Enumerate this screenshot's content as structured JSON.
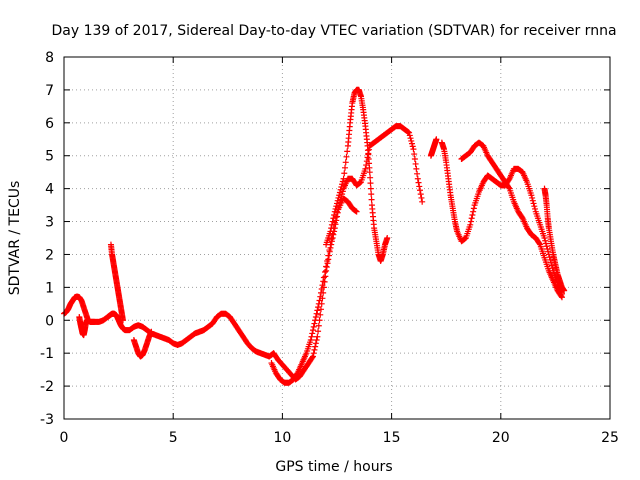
{
  "chart_data": {
    "type": "scatter",
    "title": "Day 139 of 2017, Sidereal Day-to-day VTEC variation (SDTVAR) for receiver rnna",
    "xlabel": "GPS time / hours",
    "ylabel": "SDTVAR / TECUs",
    "xlim": [
      0,
      25
    ],
    "ylim": [
      -3,
      8
    ],
    "xticks": [
      0,
      5,
      10,
      15,
      20,
      25
    ],
    "yticks": [
      -3,
      -2,
      -1,
      0,
      1,
      2,
      3,
      4,
      5,
      6,
      7,
      8
    ],
    "xtick_labels": [
      "0",
      "5",
      "10",
      "15",
      "20",
      "25"
    ],
    "ytick_labels": [
      "-3",
      "-2",
      "-1",
      "0",
      "1",
      "2",
      "3",
      "4",
      "5",
      "6",
      "7",
      "8"
    ],
    "grid": true,
    "marker": "+",
    "color": "#ff0000",
    "series": [
      {
        "name": "main",
        "x": [
          0.0,
          0.1,
          0.2,
          0.3,
          0.4,
          0.5,
          0.6,
          0.7,
          0.8,
          0.9,
          1.0,
          1.1,
          1.2,
          1.3,
          1.4,
          1.6,
          1.8,
          2.0,
          2.1,
          2.2,
          2.3,
          2.4,
          2.5,
          2.6,
          2.7,
          2.8,
          3.0,
          3.2,
          3.4,
          3.6,
          3.8,
          4.0,
          4.2,
          4.4,
          4.6,
          4.8,
          5.0,
          5.2,
          5.4,
          5.6,
          5.8,
          6.0,
          6.2,
          6.4,
          6.6,
          6.8,
          7.0,
          7.2,
          7.4,
          7.6,
          7.8,
          8.0,
          8.2,
          8.4,
          8.6,
          8.8,
          9.0,
          9.2,
          9.4,
          9.6,
          9.8,
          10.0,
          10.2,
          10.4,
          10.6,
          10.8,
          11.0,
          11.2,
          11.4,
          11.6,
          11.8,
          12.0,
          12.2,
          12.4,
          12.6,
          12.8,
          13.0,
          13.2,
          13.4,
          13.6,
          13.8,
          14.0,
          14.2,
          14.4,
          14.6,
          14.8,
          15.0,
          15.2,
          15.4,
          15.6,
          15.8,
          16.0,
          16.2,
          16.4
        ],
        "y": [
          0.2,
          0.25,
          0.35,
          0.5,
          0.6,
          0.7,
          0.72,
          0.7,
          0.6,
          0.4,
          0.2,
          0.0,
          -0.05,
          -0.05,
          -0.05,
          -0.05,
          0.0,
          0.1,
          0.15,
          0.2,
          0.2,
          0.15,
          0.0,
          -0.15,
          -0.25,
          -0.3,
          -0.3,
          -0.2,
          -0.15,
          -0.2,
          -0.3,
          -0.4,
          -0.45,
          -0.5,
          -0.55,
          -0.6,
          -0.7,
          -0.75,
          -0.7,
          -0.6,
          -0.5,
          -0.4,
          -0.35,
          -0.3,
          -0.2,
          -0.1,
          0.1,
          0.2,
          0.2,
          0.1,
          -0.1,
          -0.3,
          -0.5,
          -0.7,
          -0.85,
          -0.95,
          -1.0,
          -1.05,
          -1.1,
          -1.0,
          -1.2,
          -1.35,
          -1.5,
          -1.65,
          -1.8,
          -1.7,
          -1.5,
          -1.3,
          -1.1,
          -0.5,
          0.5,
          1.5,
          2.2,
          2.8,
          3.5,
          4.0,
          4.3,
          4.3,
          4.1,
          4.2,
          4.6,
          5.3,
          5.4,
          5.5,
          5.6,
          5.7,
          5.8,
          5.9,
          5.9,
          5.8,
          5.7,
          5.2,
          4.3,
          3.6
        ]
      },
      {
        "name": "branch-high",
        "x": [
          12.0,
          12.2,
          12.4,
          12.6,
          12.8,
          13.0,
          13.1,
          13.2,
          13.3,
          13.4,
          13.5,
          13.6,
          13.7,
          13.8,
          13.9,
          14.0,
          14.1,
          14.2,
          14.3,
          14.4,
          14.5,
          14.6,
          14.7,
          14.8
        ],
        "y": [
          2.3,
          2.7,
          3.3,
          3.8,
          4.3,
          5.3,
          6.0,
          6.6,
          6.9,
          7.0,
          7.0,
          6.8,
          6.4,
          5.9,
          5.3,
          4.5,
          3.5,
          2.8,
          2.4,
          2.0,
          1.8,
          2.0,
          2.3,
          2.5
        ]
      },
      {
        "name": "branch-low",
        "x": [
          9.5,
          9.7,
          9.9,
          10.1,
          10.3,
          10.5,
          10.7,
          10.9,
          11.1,
          11.3,
          11.5,
          11.7,
          11.9,
          12.2,
          12.5,
          12.8,
          13.0,
          13.2,
          13.4
        ],
        "y": [
          -1.3,
          -1.6,
          -1.8,
          -1.9,
          -1.9,
          -1.8,
          -1.6,
          -1.3,
          -1.0,
          -0.6,
          0.0,
          0.6,
          1.3,
          2.3,
          3.3,
          3.7,
          3.6,
          3.4,
          3.3
        ]
      },
      {
        "name": "spike-2h",
        "x": [
          2.15,
          2.2,
          2.25,
          2.3,
          2.35,
          2.4,
          2.45,
          2.5,
          2.55,
          2.6,
          2.65,
          2.7
        ],
        "y": [
          2.3,
          2.0,
          1.8,
          1.6,
          1.4,
          1.2,
          1.0,
          0.8,
          0.6,
          0.4,
          0.2,
          0.0
        ]
      },
      {
        "name": "dip-1h",
        "x": [
          0.7,
          0.75,
          0.8,
          0.85,
          0.9,
          0.95,
          1.0,
          1.05
        ],
        "y": [
          0.1,
          -0.1,
          -0.25,
          -0.4,
          -0.45,
          -0.3,
          -0.1,
          0.0
        ]
      },
      {
        "name": "dip-3h",
        "x": [
          3.2,
          3.3,
          3.4,
          3.5,
          3.6,
          3.7,
          3.8,
          3.9,
          4.0
        ],
        "y": [
          -0.6,
          -0.8,
          -1.0,
          -1.1,
          -1.05,
          -0.9,
          -0.7,
          -0.5,
          -0.35
        ]
      },
      {
        "name": "seg-16.7h",
        "x": [
          16.8,
          16.85,
          16.9,
          16.95,
          17.0,
          17.05
        ],
        "y": [
          5.0,
          5.1,
          5.2,
          5.3,
          5.4,
          5.5
        ]
      },
      {
        "name": "evening-upper",
        "x": [
          17.3,
          17.4,
          17.5,
          17.6,
          17.7,
          17.8,
          17.9,
          18.0,
          18.2,
          18.4,
          18.6,
          18.8,
          19.0,
          19.2,
          19.4,
          19.6,
          19.8,
          20.0,
          20.2,
          20.4,
          20.6,
          20.8,
          21.0,
          21.2,
          21.4,
          21.6,
          21.8,
          22.0,
          22.2,
          22.4,
          22.6,
          22.8
        ],
        "y": [
          5.4,
          5.2,
          4.8,
          4.3,
          3.8,
          3.4,
          3.0,
          2.7,
          2.4,
          2.5,
          2.9,
          3.5,
          3.9,
          4.2,
          4.4,
          4.3,
          4.2,
          4.1,
          4.1,
          4.3,
          4.6,
          4.6,
          4.5,
          4.2,
          3.8,
          3.3,
          2.9,
          2.5,
          2.0,
          1.5,
          1.1,
          0.8
        ]
      },
      {
        "name": "evening-lower",
        "x": [
          18.2,
          18.4,
          18.6,
          18.8,
          19.0,
          19.2,
          19.4,
          19.6,
          19.8,
          20.0,
          20.2,
          20.4,
          20.6,
          20.8,
          21.0,
          21.2,
          21.4,
          21.6,
          21.8,
          22.0,
          22.2,
          22.4,
          22.6,
          22.8
        ],
        "y": [
          4.9,
          5.0,
          5.1,
          5.3,
          5.4,
          5.3,
          5.0,
          4.8,
          4.6,
          4.4,
          4.2,
          4.0,
          3.6,
          3.3,
          3.1,
          2.8,
          2.6,
          2.5,
          2.3,
          1.9,
          1.5,
          1.2,
          0.9,
          0.7
        ]
      },
      {
        "name": "spike-22h",
        "x": [
          22.0,
          22.05,
          22.1,
          22.15,
          22.2,
          22.3,
          22.4,
          22.5,
          22.6,
          22.7,
          22.8,
          22.9
        ],
        "y": [
          4.0,
          3.8,
          3.5,
          3.1,
          2.8,
          2.4,
          2.0,
          1.7,
          1.4,
          1.2,
          1.0,
          0.9
        ]
      }
    ]
  }
}
